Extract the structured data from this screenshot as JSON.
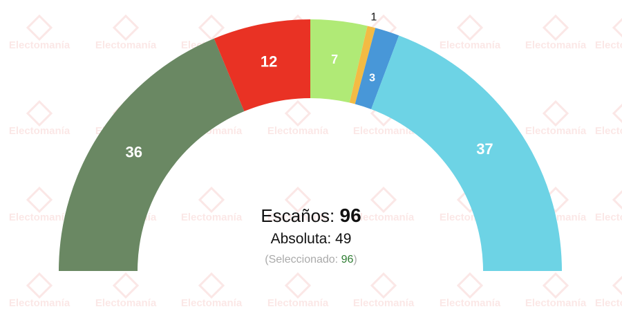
{
  "watermark_text": "Electomanía",
  "chart_data": {
    "type": "pie",
    "shape": "semicircle",
    "total": 96,
    "slices": [
      {
        "value": 36,
        "label": "36",
        "color": "#6a8863"
      },
      {
        "value": 12,
        "label": "12",
        "color": "#e93224"
      },
      {
        "value": 7,
        "label": "7",
        "color": "#b0ea76"
      },
      {
        "value": 1,
        "label": "1",
        "color": "#f3bb44"
      },
      {
        "value": 3,
        "label": "3",
        "color": "#4897d8"
      },
      {
        "value": 37,
        "label": "37",
        "color": "#6dd3e5"
      }
    ]
  },
  "summary": {
    "seats_label": "Escaños:",
    "seats_value": "96",
    "majority_label": "Absoluta:",
    "majority_value": "49",
    "selected_prefix": "(Seleccionado:",
    "selected_value": "96",
    "selected_suffix": ")"
  }
}
